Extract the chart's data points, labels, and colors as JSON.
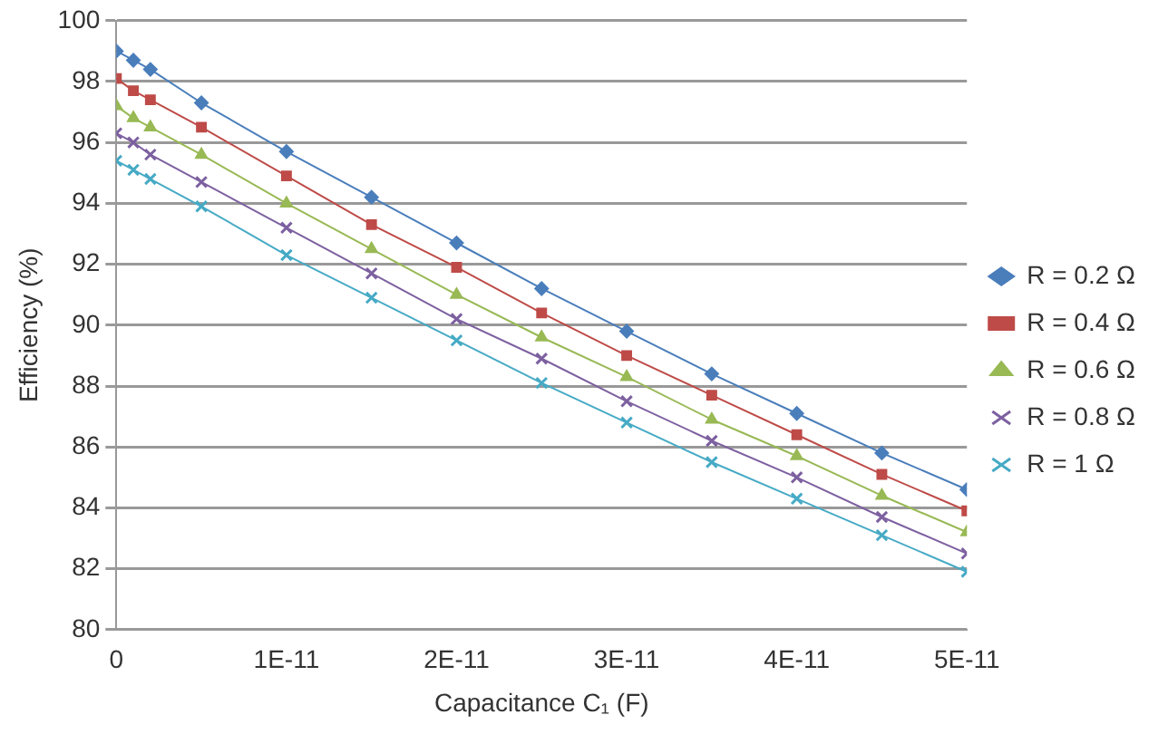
{
  "chart_data": {
    "type": "line",
    "xlabel": "Capacitance C₁ (F)",
    "ylabel": "Efficiency (%)",
    "x": [
      0,
      1e-12,
      2e-12,
      5e-12,
      1e-11,
      1.5e-11,
      2e-11,
      2.5e-11,
      3e-11,
      3.5e-11,
      4e-11,
      4.5e-11,
      5e-11
    ],
    "series": [
      {
        "name": "R = 0.2 Ω",
        "color": "#4a7ebb",
        "marker": "diamond",
        "values": [
          99.0,
          98.7,
          98.4,
          97.3,
          95.7,
          94.2,
          92.7,
          91.2,
          89.8,
          88.4,
          87.1,
          85.8,
          84.6
        ]
      },
      {
        "name": "R = 0.4 Ω",
        "color": "#be4b48",
        "marker": "square",
        "values": [
          98.1,
          97.7,
          97.4,
          96.5,
          94.9,
          93.3,
          91.9,
          90.4,
          89.0,
          87.7,
          86.4,
          85.1,
          83.9
        ]
      },
      {
        "name": "R = 0.6 Ω",
        "color": "#98b954",
        "marker": "triangle",
        "values": [
          97.2,
          96.8,
          96.5,
          95.6,
          94.0,
          92.5,
          91.0,
          89.6,
          88.3,
          86.9,
          85.7,
          84.4,
          83.2
        ]
      },
      {
        "name": "R = 0.8 Ω",
        "color": "#7d60a0",
        "marker": "cross",
        "values": [
          96.3,
          96.0,
          95.6,
          94.7,
          93.2,
          91.7,
          90.2,
          88.9,
          87.5,
          86.2,
          85.0,
          83.7,
          82.5
        ]
      },
      {
        "name": "R = 1 Ω",
        "color": "#46aac5",
        "marker": "cross",
        "values": [
          95.4,
          95.1,
          94.8,
          93.9,
          92.3,
          90.9,
          89.5,
          88.1,
          86.8,
          85.5,
          84.3,
          83.1,
          81.9
        ]
      }
    ],
    "xlim": [
      0,
      5e-11
    ],
    "xticks": [
      0,
      {
        "value": 1e-11,
        "label": "1E-11"
      },
      {
        "value": 2e-11,
        "label": "2E-11"
      },
      {
        "value": 3e-11,
        "label": "3E-11"
      },
      {
        "value": 4e-11,
        "label": "4E-11"
      },
      {
        "value": 5e-11,
        "label": "5E-11"
      }
    ],
    "ylim": [
      80,
      100
    ],
    "yticks": [
      80,
      82,
      84,
      86,
      88,
      90,
      92,
      94,
      96,
      98,
      100
    ],
    "grid": "y",
    "legend": "right",
    "line_style": "solid"
  }
}
